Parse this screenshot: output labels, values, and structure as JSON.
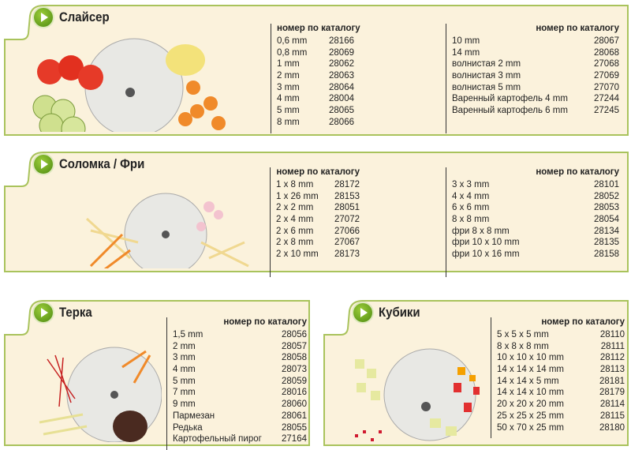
{
  "colors": {
    "panel_bg": "#fbf2dc",
    "border": "#a9c35c",
    "accent": "#5a9a18"
  },
  "sections": [
    {
      "title": "Слайсер",
      "icon": "play-icon",
      "columns": [
        {
          "header": "номер по каталогу",
          "rows": [
            [
              "0,6 mm",
              "28166"
            ],
            [
              "0,8 mm",
              "28069"
            ],
            [
              "1 mm",
              "28062"
            ],
            [
              "2 mm",
              "28063"
            ],
            [
              "3 mm",
              "28064"
            ],
            [
              "4 mm",
              "28004"
            ],
            [
              "5 mm",
              "28065"
            ],
            [
              "8 mm",
              "28066"
            ]
          ]
        },
        {
          "header": "номер по каталогу",
          "rows": [
            [
              "10 mm",
              "28067"
            ],
            [
              "14 mm",
              "28068"
            ],
            [
              "волнистая 2 mm",
              "27068"
            ],
            [
              "волнистая 3 mm",
              "27069"
            ],
            [
              "волнистая 5 mm",
              "27070"
            ],
            [
              "Варенный картофель 4 mm",
              "27244"
            ],
            [
              "Варенный картофель 6 mm",
              "27245"
            ]
          ]
        }
      ]
    },
    {
      "title": "Соломка / Фри",
      "icon": "play-icon",
      "columns": [
        {
          "header": "номер по каталогу",
          "rows": [
            [
              "1 x 8 mm",
              "28172"
            ],
            [
              "1 x 26 mm",
              "28153"
            ],
            [
              "2 x 2 mm",
              "28051"
            ],
            [
              "2 x 4 mm",
              "27072"
            ],
            [
              "2 x 6 mm",
              "27066"
            ],
            [
              "2 x 8 mm",
              "27067"
            ],
            [
              "2 x 10 mm",
              "28173"
            ]
          ]
        },
        {
          "header": "номер по каталогу",
          "rows": [
            [
              "3 x 3 mm",
              "28101"
            ],
            [
              "4 x 4 mm",
              "28052"
            ],
            [
              "6 x 6 mm",
              "28053"
            ],
            [
              "8 x 8 mm",
              "28054"
            ],
            [
              "фри 8 x 8 mm",
              "28134"
            ],
            [
              "фри 10 x 10 mm",
              "28135"
            ],
            [
              "фри 10 x 16 mm",
              "28158"
            ]
          ]
        }
      ]
    },
    {
      "title": "Терка",
      "icon": "play-icon",
      "columns": [
        {
          "header": "номер по каталогу",
          "rows": [
            [
              "1,5 mm",
              "28056"
            ],
            [
              "2 mm",
              "28057"
            ],
            [
              "3 mm",
              "28058"
            ],
            [
              "4 mm",
              "28073"
            ],
            [
              "5 mm",
              "28059"
            ],
            [
              "7 mm",
              "28016"
            ],
            [
              "9 mm",
              "28060"
            ],
            [
              "Пармезан",
              "28061"
            ],
            [
              "Редька",
              "28055"
            ],
            [
              "Картофельный пирог",
              "27164"
            ]
          ]
        }
      ]
    },
    {
      "title": "Кубики",
      "icon": "play-icon",
      "columns": [
        {
          "header": "номер по каталогу",
          "rows": [
            [
              "5 x 5 x 5 mm",
              "28110"
            ],
            [
              "8 x 8 x 8 mm",
              "28111"
            ],
            [
              "10 x 10 x 10 mm",
              "28112"
            ],
            [
              "14 x 14 x 14 mm",
              "28113"
            ],
            [
              "14 x 14 x 5 mm",
              "28181"
            ],
            [
              "14 x 14 x 10 mm",
              "28179"
            ],
            [
              "20 x 20 x 20 mm",
              "28114"
            ],
            [
              "25 x 25 x 25 mm",
              "28115"
            ],
            [
              "50 x 70 x 25 mm",
              "28180"
            ]
          ]
        }
      ]
    }
  ]
}
